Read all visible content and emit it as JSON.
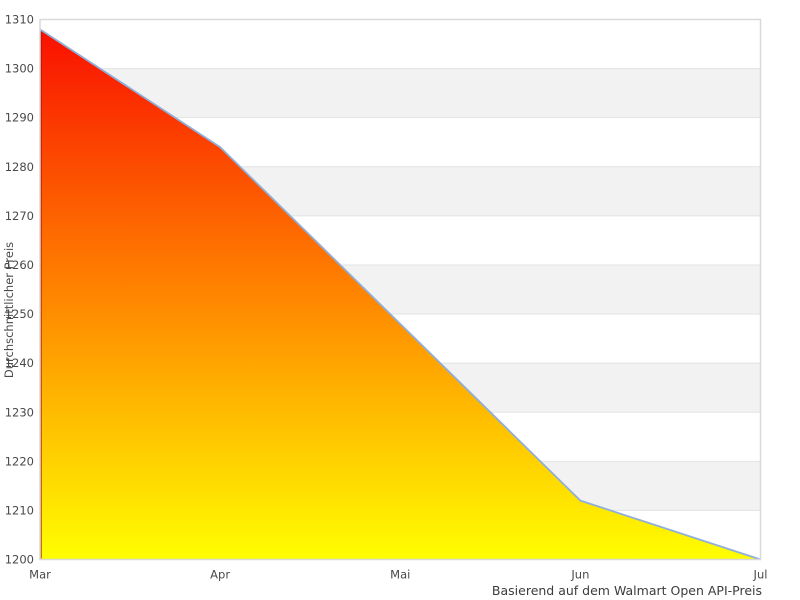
{
  "chart_data": {
    "type": "area",
    "title": "",
    "xlabel": "",
    "ylabel": "Durchschnittlicher Preis",
    "caption": "Basierend auf dem Walmart Open API-Preis",
    "categories": [
      "Mar",
      "Apr",
      "Mai",
      "Jun",
      "Jul"
    ],
    "values": [
      1308,
      1284,
      1248,
      1212,
      1200
    ],
    "ylim": [
      1200,
      1310
    ],
    "ytick_step": 10,
    "yticks": [
      1310,
      1300,
      1290,
      1280,
      1270,
      1260,
      1250,
      1240,
      1230,
      1220,
      1210,
      1200
    ],
    "grid": "horizontal gridlines with alternating white/gray bands",
    "legend": "none",
    "colors": {
      "area_gradient_top": "#f90f00",
      "area_gradient_mid": "#ff8500",
      "area_gradient_bottom": "#ffff00",
      "line": "#8fafd9",
      "area_left_edge": "#b41400",
      "band_fill": "#f2f2f2",
      "gridline": "#e3e3e3",
      "plot_border": "#d9d9d9",
      "tick_label": "#4a4a4a",
      "axis_title": "#4a4a4a",
      "caption_text": "#3c3c3c",
      "background": "#ffffff"
    }
  }
}
